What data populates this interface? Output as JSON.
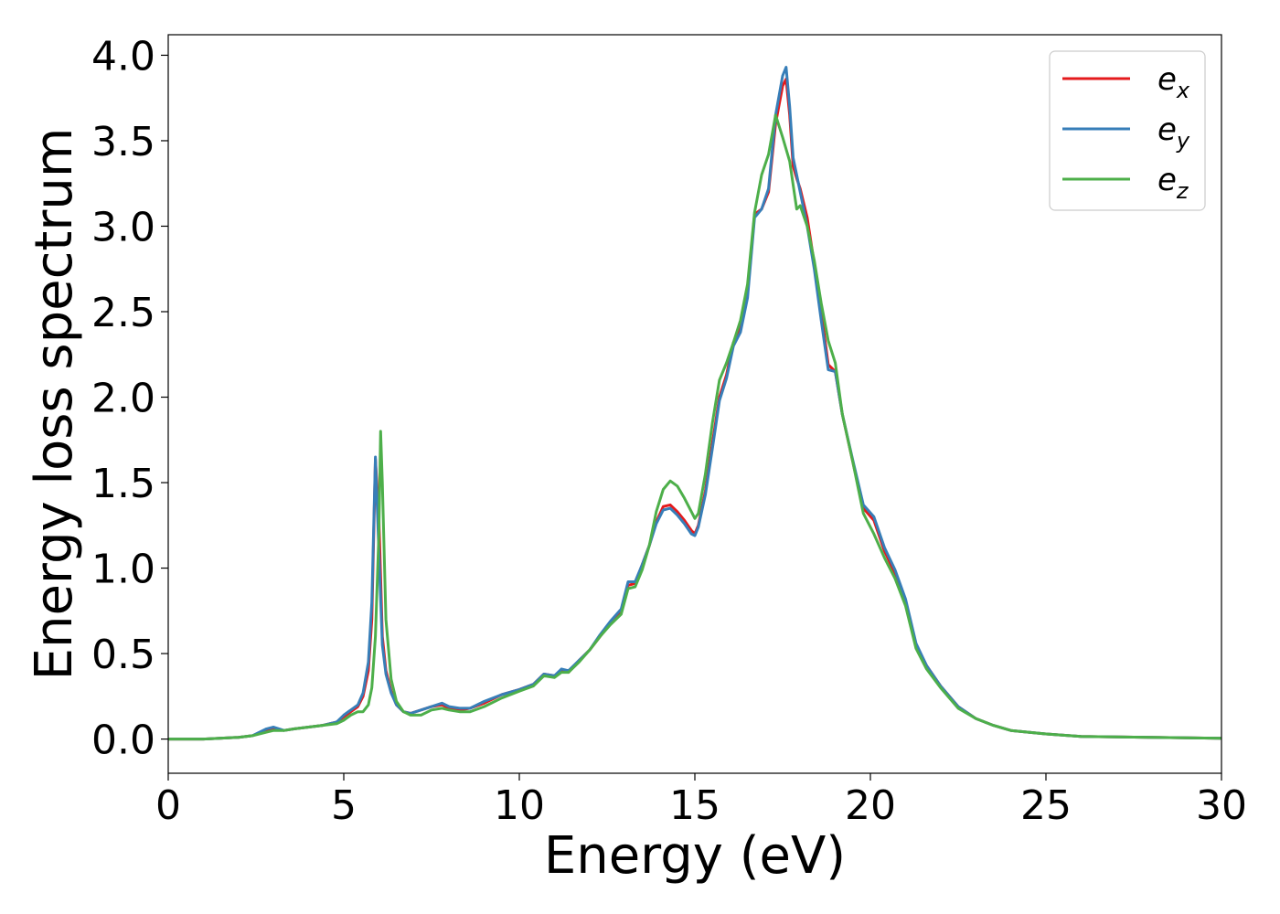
{
  "chart_data": {
    "type": "line",
    "title": "",
    "xlabel": "Energy (eV)",
    "ylabel": "Energy loss spectrum",
    "xlim": [
      0,
      30
    ],
    "ylim": [
      -0.2,
      4.12
    ],
    "xticks": [
      0,
      5,
      10,
      15,
      20,
      25,
      30
    ],
    "xtick_labels": [
      "0",
      "5",
      "10",
      "15",
      "20",
      "25",
      "30"
    ],
    "yticks": [
      0.0,
      0.5,
      1.0,
      1.5,
      2.0,
      2.5,
      3.0,
      3.5,
      4.0
    ],
    "ytick_labels": [
      "0.0",
      "0.5",
      "1.0",
      "1.5",
      "2.0",
      "2.5",
      "3.0",
      "3.5",
      "4.0"
    ],
    "grid": false,
    "legend": "top-right",
    "series": [
      {
        "name": "e_x",
        "legend_base": "e",
        "legend_sub": "x",
        "color": "#e41a1c",
        "x": [
          0,
          1,
          2,
          2.4,
          2.8,
          3.0,
          3.3,
          3.6,
          4.0,
          4.4,
          4.8,
          5.0,
          5.2,
          5.4,
          5.55,
          5.7,
          5.8,
          5.9,
          6.0,
          6.1,
          6.2,
          6.35,
          6.5,
          6.7,
          6.9,
          7.2,
          7.5,
          7.8,
          8.0,
          8.3,
          8.6,
          9.0,
          9.5,
          10.0,
          10.4,
          10.7,
          11.0,
          11.2,
          11.4,
          11.7,
          12.0,
          12.3,
          12.6,
          12.9,
          13.1,
          13.3,
          13.5,
          13.7,
          13.9,
          14.1,
          14.3,
          14.5,
          14.7,
          14.9,
          15.0,
          15.1,
          15.3,
          15.5,
          15.7,
          15.9,
          16.1,
          16.3,
          16.5,
          16.7,
          16.9,
          17.1,
          17.3,
          17.5,
          17.6,
          17.7,
          17.8,
          17.9,
          18.0,
          18.2,
          18.4,
          18.6,
          18.8,
          19.0,
          19.2,
          19.5,
          19.8,
          20.1,
          20.4,
          20.7,
          21.0,
          21.3,
          21.6,
          22.0,
          22.5,
          23.0,
          23.5,
          24.0,
          25.0,
          26.0,
          28.0,
          30.0
        ],
        "y": [
          0.0,
          0.0,
          0.01,
          0.02,
          0.05,
          0.06,
          0.05,
          0.06,
          0.07,
          0.08,
          0.1,
          0.13,
          0.16,
          0.19,
          0.25,
          0.4,
          0.7,
          1.64,
          1.3,
          0.6,
          0.4,
          0.28,
          0.2,
          0.16,
          0.15,
          0.17,
          0.19,
          0.2,
          0.18,
          0.17,
          0.18,
          0.21,
          0.26,
          0.29,
          0.32,
          0.38,
          0.37,
          0.4,
          0.39,
          0.46,
          0.52,
          0.6,
          0.68,
          0.75,
          0.9,
          0.91,
          1.02,
          1.13,
          1.27,
          1.36,
          1.37,
          1.33,
          1.28,
          1.22,
          1.2,
          1.25,
          1.45,
          1.73,
          2.0,
          2.13,
          2.32,
          2.4,
          2.6,
          3.07,
          3.1,
          3.2,
          3.6,
          3.82,
          3.86,
          3.65,
          3.35,
          3.28,
          3.22,
          3.05,
          2.78,
          2.5,
          2.19,
          2.15,
          1.9,
          1.62,
          1.35,
          1.28,
          1.1,
          0.97,
          0.8,
          0.55,
          0.43,
          0.31,
          0.19,
          0.12,
          0.08,
          0.05,
          0.03,
          0.015,
          0.01,
          0.005
        ]
      },
      {
        "name": "e_y",
        "legend_base": "e",
        "legend_sub": "y",
        "color": "#377eb8",
        "x": [
          0,
          1,
          2,
          2.4,
          2.8,
          3.0,
          3.3,
          3.6,
          4.0,
          4.4,
          4.8,
          5.0,
          5.2,
          5.4,
          5.55,
          5.7,
          5.8,
          5.9,
          6.0,
          6.1,
          6.2,
          6.35,
          6.5,
          6.7,
          6.9,
          7.2,
          7.5,
          7.8,
          8.0,
          8.3,
          8.6,
          9.0,
          9.5,
          10.0,
          10.4,
          10.7,
          11.0,
          11.2,
          11.4,
          11.7,
          12.0,
          12.3,
          12.6,
          12.9,
          13.1,
          13.3,
          13.5,
          13.7,
          13.9,
          14.1,
          14.3,
          14.5,
          14.7,
          14.9,
          15.0,
          15.1,
          15.3,
          15.5,
          15.7,
          15.9,
          16.1,
          16.3,
          16.5,
          16.7,
          16.9,
          17.1,
          17.3,
          17.5,
          17.6,
          17.7,
          17.8,
          17.9,
          18.0,
          18.2,
          18.4,
          18.6,
          18.8,
          19.0,
          19.2,
          19.5,
          19.8,
          20.1,
          20.4,
          20.7,
          21.0,
          21.3,
          21.6,
          22.0,
          22.5,
          23.0,
          23.5,
          24.0,
          25.0,
          26.0,
          28.0,
          30.0
        ],
        "y": [
          0.0,
          0.0,
          0.01,
          0.02,
          0.06,
          0.07,
          0.05,
          0.06,
          0.07,
          0.08,
          0.1,
          0.14,
          0.17,
          0.2,
          0.27,
          0.45,
          0.8,
          1.65,
          1.1,
          0.55,
          0.38,
          0.27,
          0.2,
          0.16,
          0.15,
          0.17,
          0.19,
          0.21,
          0.19,
          0.18,
          0.18,
          0.22,
          0.26,
          0.29,
          0.32,
          0.38,
          0.37,
          0.41,
          0.4,
          0.46,
          0.52,
          0.61,
          0.69,
          0.76,
          0.92,
          0.92,
          1.02,
          1.13,
          1.26,
          1.34,
          1.35,
          1.31,
          1.26,
          1.2,
          1.19,
          1.24,
          1.43,
          1.7,
          1.98,
          2.11,
          2.3,
          2.38,
          2.58,
          3.05,
          3.1,
          3.22,
          3.65,
          3.88,
          3.93,
          3.7,
          3.4,
          3.3,
          3.2,
          3.0,
          2.75,
          2.45,
          2.16,
          2.15,
          1.9,
          1.63,
          1.37,
          1.3,
          1.12,
          0.99,
          0.82,
          0.56,
          0.43,
          0.31,
          0.19,
          0.12,
          0.08,
          0.05,
          0.03,
          0.015,
          0.01,
          0.005
        ]
      },
      {
        "name": "e_z",
        "legend_base": "e",
        "legend_sub": "z",
        "color": "#4daf4a",
        "x": [
          0,
          1,
          2,
          2.4,
          2.8,
          3.0,
          3.3,
          3.6,
          4.0,
          4.4,
          4.8,
          5.0,
          5.2,
          5.4,
          5.55,
          5.7,
          5.8,
          5.9,
          6.0,
          6.05,
          6.1,
          6.2,
          6.35,
          6.5,
          6.7,
          6.9,
          7.2,
          7.5,
          7.8,
          8.0,
          8.3,
          8.6,
          9.0,
          9.5,
          10.0,
          10.4,
          10.7,
          11.0,
          11.2,
          11.4,
          11.7,
          12.0,
          12.3,
          12.6,
          12.9,
          13.1,
          13.3,
          13.5,
          13.7,
          13.9,
          14.1,
          14.3,
          14.5,
          14.7,
          14.9,
          15.0,
          15.1,
          15.3,
          15.5,
          15.7,
          15.9,
          16.1,
          16.3,
          16.5,
          16.7,
          16.9,
          17.1,
          17.3,
          17.5,
          17.7,
          17.9,
          18.0,
          18.2,
          18.4,
          18.6,
          18.8,
          19.0,
          19.2,
          19.5,
          19.8,
          20.1,
          20.4,
          20.7,
          21.0,
          21.3,
          21.6,
          22.0,
          22.5,
          23.0,
          23.5,
          24.0,
          25.0,
          26.0,
          28.0,
          30.0
        ],
        "y": [
          0.0,
          0.0,
          0.01,
          0.02,
          0.04,
          0.05,
          0.05,
          0.06,
          0.07,
          0.08,
          0.09,
          0.11,
          0.14,
          0.16,
          0.16,
          0.2,
          0.3,
          0.6,
          1.2,
          1.8,
          1.5,
          0.7,
          0.35,
          0.22,
          0.16,
          0.14,
          0.14,
          0.17,
          0.18,
          0.17,
          0.16,
          0.16,
          0.19,
          0.24,
          0.28,
          0.31,
          0.37,
          0.36,
          0.39,
          0.39,
          0.45,
          0.52,
          0.6,
          0.67,
          0.73,
          0.88,
          0.89,
          0.99,
          1.13,
          1.33,
          1.46,
          1.51,
          1.48,
          1.41,
          1.33,
          1.29,
          1.32,
          1.55,
          1.85,
          2.1,
          2.2,
          2.32,
          2.45,
          2.66,
          3.08,
          3.3,
          3.42,
          3.65,
          3.52,
          3.38,
          3.1,
          3.12,
          3.0,
          2.8,
          2.55,
          2.33,
          2.2,
          1.9,
          1.62,
          1.32,
          1.2,
          1.06,
          0.94,
          0.78,
          0.53,
          0.41,
          0.3,
          0.18,
          0.12,
          0.08,
          0.05,
          0.03,
          0.015,
          0.01,
          0.005
        ]
      }
    ]
  }
}
